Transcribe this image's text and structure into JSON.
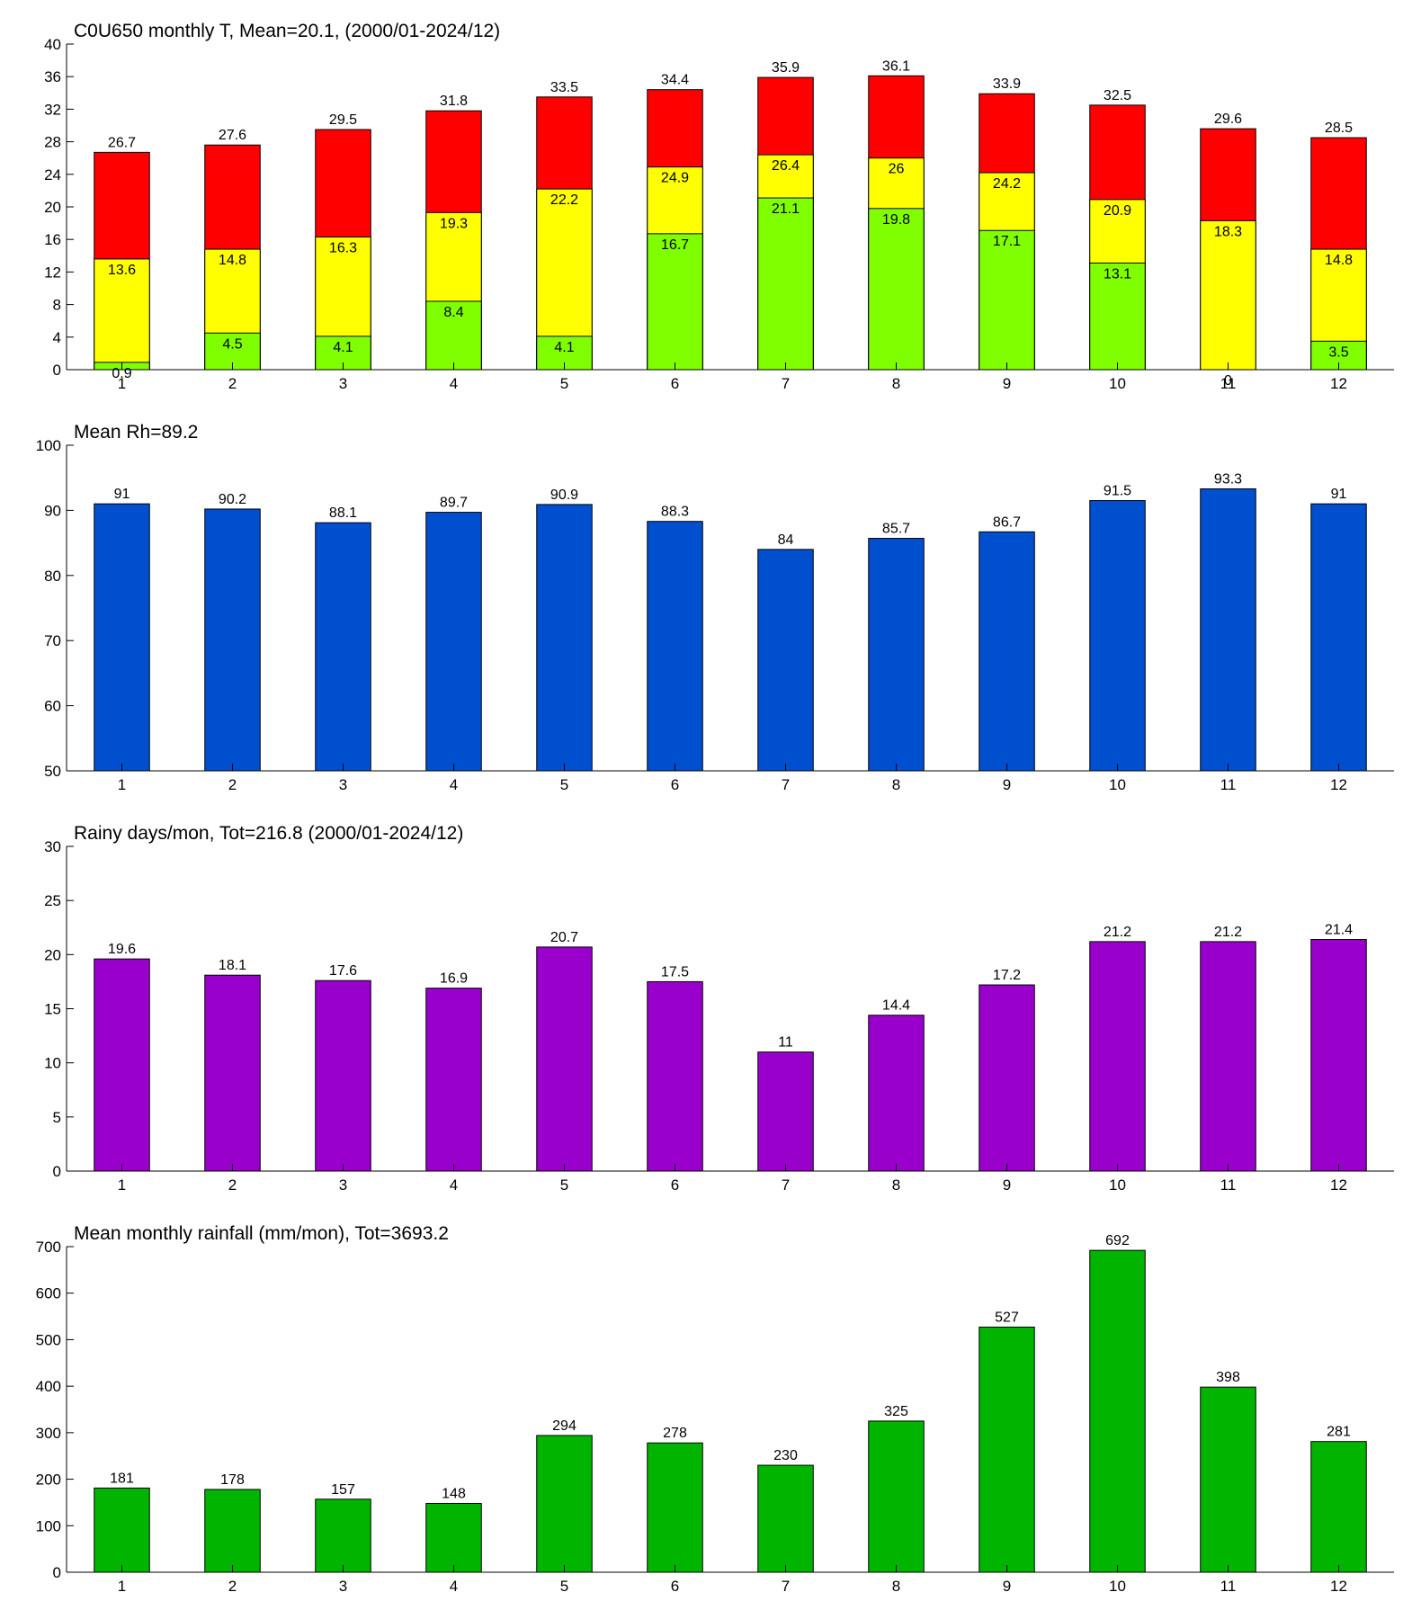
{
  "chart_data": [
    {
      "type": "bar",
      "title": "C0U650 monthly T, Mean=20.1, (2000/01-2024/12)",
      "categories": [
        1,
        2,
        3,
        4,
        5,
        6,
        7,
        8,
        9,
        10,
        11,
        12
      ],
      "series": [
        {
          "color": "#ff0000",
          "values": [
            26.7,
            27.6,
            29.5,
            31.8,
            33.5,
            34.4,
            35.9,
            36.1,
            33.9,
            32.5,
            29.6,
            28.5
          ]
        },
        {
          "color": "#ffff00",
          "values": [
            13.6,
            14.8,
            16.3,
            19.3,
            22.2,
            24.9,
            26.4,
            26,
            24.2,
            20.9,
            18.3,
            14.8
          ]
        },
        {
          "color": "#80ff00",
          "values": [
            0.9,
            4.5,
            4.1,
            8.4,
            4.1,
            16.7,
            21.1,
            19.8,
            17.1,
            13.1,
            0,
            3.5
          ]
        }
      ],
      "ylim": [
        0,
        40
      ],
      "yticks": [
        0,
        4,
        8,
        12,
        16,
        20,
        24,
        28,
        32,
        36,
        40
      ]
    },
    {
      "type": "bar",
      "title": "Mean Rh=89.2",
      "categories": [
        1,
        2,
        3,
        4,
        5,
        6,
        7,
        8,
        9,
        10,
        11,
        12
      ],
      "series": [
        {
          "color": "#004fcf",
          "values": [
            91,
            90.2,
            88.1,
            89.7,
            90.9,
            88.3,
            84,
            85.7,
            86.7,
            91.5,
            93.3,
            91
          ]
        }
      ],
      "ylim": [
        50,
        100
      ],
      "yticks": [
        50,
        60,
        70,
        80,
        90,
        100
      ]
    },
    {
      "type": "bar",
      "title": "Rainy days/mon, Tot=216.8 (2000/01-2024/12)",
      "categories": [
        1,
        2,
        3,
        4,
        5,
        6,
        7,
        8,
        9,
        10,
        11,
        12
      ],
      "series": [
        {
          "color": "#9900cc",
          "values": [
            19.6,
            18.1,
            17.6,
            16.9,
            20.7,
            17.5,
            11,
            14.4,
            17.2,
            21.2,
            21.2,
            21.4
          ]
        }
      ],
      "ylim": [
        0,
        30
      ],
      "yticks": [
        0,
        5,
        10,
        15,
        20,
        25,
        30
      ]
    },
    {
      "type": "bar",
      "title": "Mean monthly rainfall (mm/mon), Tot=3693.2",
      "categories": [
        1,
        2,
        3,
        4,
        5,
        6,
        7,
        8,
        9,
        10,
        11,
        12
      ],
      "series": [
        {
          "color": "#00b400",
          "values": [
            181,
            178,
            157,
            148,
            294,
            278,
            230,
            325,
            527,
            692,
            398,
            281
          ]
        }
      ],
      "ylim": [
        0,
        700
      ],
      "yticks": [
        0,
        100,
        200,
        300,
        400,
        500,
        600,
        700
      ]
    }
  ]
}
